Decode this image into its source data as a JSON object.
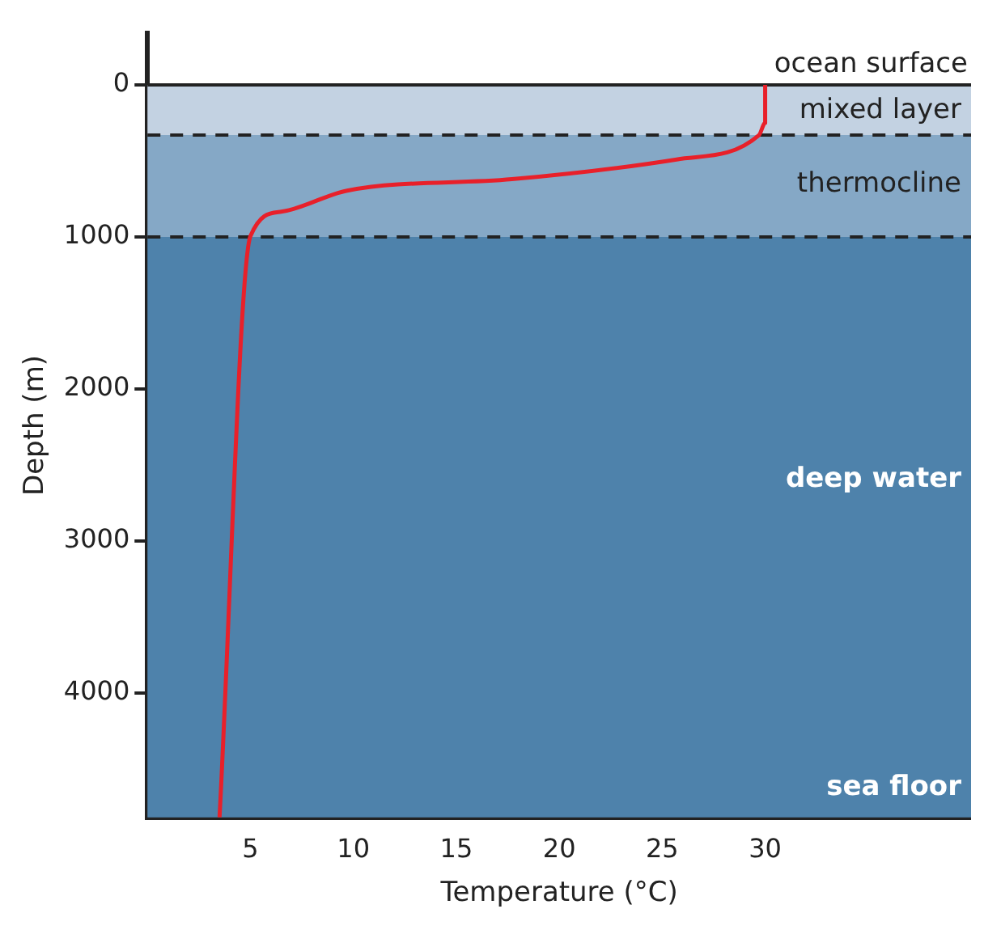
{
  "chart_data": {
    "type": "line",
    "xlabel": "Temperature (°C)",
    "ylabel": "Depth (m)",
    "x": [
      30,
      30,
      29.7,
      25.7,
      17.7,
      9.7,
      6.5,
      5,
      3.5
    ],
    "series": [
      {
        "color": "#e8202a",
        "values": [
          0,
          250,
          330,
          490,
          620,
          695,
          834,
          995,
          4820
        ]
      }
    ],
    "xlim": [
      0,
      40
    ],
    "xticks": [
      5,
      10,
      15,
      20,
      25,
      30
    ],
    "ylim": [
      4820,
      -340
    ],
    "yticks": [
      0,
      1000,
      2000,
      3000,
      4000
    ],
    "bands": [
      {
        "axis": "y",
        "from": 0,
        "to": 330,
        "label": "mixed layer",
        "color": "#c3d2e2"
      },
      {
        "axis": "y",
        "from": 330,
        "to": 1000,
        "label": "thermocline",
        "color": "#85a8c6"
      },
      {
        "axis": "y",
        "from": 1000,
        "to": 4820,
        "label": "deep water",
        "color": "#4e82ab"
      }
    ],
    "ref_lines": [
      {
        "axis": "y",
        "value": 0,
        "color": "#222222",
        "line_style": "solid"
      },
      {
        "axis": "y",
        "value": 330,
        "color": "#222222",
        "line_style": "dashed"
      },
      {
        "axis": "y",
        "value": 1000,
        "color": "#222222",
        "line_style": "dashed"
      }
    ],
    "annotations": [
      "ocean surface",
      "sea floor"
    ],
    "grid": false,
    "legend": false,
    "marker": "none",
    "line_style": "solid"
  }
}
